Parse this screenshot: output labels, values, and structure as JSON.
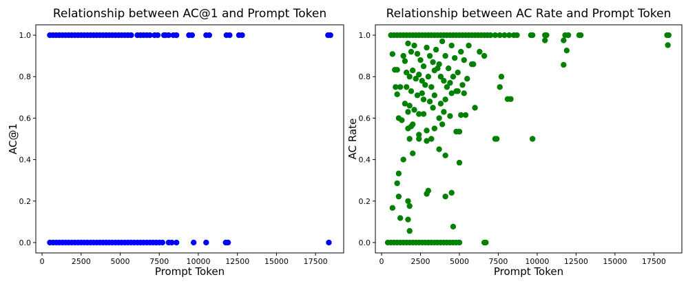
{
  "chart_data": [
    {
      "type": "scatter",
      "title": "Relationship between AC@1 and Prompt Token",
      "xlabel": "Prompt Token",
      "ylabel": "AC@1",
      "xlim": [
        -400,
        19300
      ],
      "ylim": [
        -0.05,
        1.05
      ],
      "xticks": [
        0,
        2500,
        5000,
        7500,
        10000,
        12500,
        15000,
        17500
      ],
      "yticks": [
        0.0,
        0.2,
        0.4,
        0.6,
        0.8,
        1.0
      ],
      "grid": false,
      "color": "#0000ff",
      "points": [
        [
          500,
          1
        ],
        [
          700,
          1
        ],
        [
          900,
          1
        ],
        [
          1100,
          1
        ],
        [
          1300,
          1
        ],
        [
          1500,
          1
        ],
        [
          1700,
          1
        ],
        [
          1900,
          1
        ],
        [
          2100,
          1
        ],
        [
          2300,
          1
        ],
        [
          2500,
          1
        ],
        [
          2700,
          1
        ],
        [
          2900,
          1
        ],
        [
          3100,
          1
        ],
        [
          3300,
          1
        ],
        [
          3500,
          1
        ],
        [
          3700,
          1
        ],
        [
          3900,
          1
        ],
        [
          4100,
          1
        ],
        [
          4300,
          1
        ],
        [
          4500,
          1
        ],
        [
          4700,
          1
        ],
        [
          4900,
          1
        ],
        [
          5100,
          1
        ],
        [
          5300,
          1
        ],
        [
          5500,
          1
        ],
        [
          5700,
          1
        ],
        [
          6100,
          1
        ],
        [
          6300,
          1
        ],
        [
          6500,
          1
        ],
        [
          6700,
          1
        ],
        [
          6900,
          1
        ],
        [
          7200,
          1
        ],
        [
          7400,
          1
        ],
        [
          7800,
          1
        ],
        [
          7900,
          1
        ],
        [
          8100,
          1
        ],
        [
          8400,
          1
        ],
        [
          8600,
          1
        ],
        [
          9400,
          1
        ],
        [
          9600,
          1
        ],
        [
          10500,
          1
        ],
        [
          10700,
          1
        ],
        [
          11800,
          1
        ],
        [
          12000,
          1
        ],
        [
          12600,
          1
        ],
        [
          12800,
          1
        ],
        [
          18300,
          1
        ],
        [
          18450,
          1
        ],
        [
          500,
          0
        ],
        [
          700,
          0
        ],
        [
          900,
          0
        ],
        [
          1100,
          0
        ],
        [
          1300,
          0
        ],
        [
          1500,
          0
        ],
        [
          1700,
          0
        ],
        [
          1900,
          0
        ],
        [
          2100,
          0
        ],
        [
          2300,
          0
        ],
        [
          2500,
          0
        ],
        [
          2700,
          0
        ],
        [
          2900,
          0
        ],
        [
          3100,
          0
        ],
        [
          3300,
          0
        ],
        [
          3500,
          0
        ],
        [
          3700,
          0
        ],
        [
          3900,
          0
        ],
        [
          4100,
          0
        ],
        [
          4300,
          0
        ],
        [
          4500,
          0
        ],
        [
          4700,
          0
        ],
        [
          4900,
          0
        ],
        [
          5100,
          0
        ],
        [
          5300,
          0
        ],
        [
          5500,
          0
        ],
        [
          5700,
          0
        ],
        [
          5900,
          0
        ],
        [
          6100,
          0
        ],
        [
          6300,
          0
        ],
        [
          6500,
          0
        ],
        [
          6700,
          0
        ],
        [
          6900,
          0
        ],
        [
          7100,
          0
        ],
        [
          7300,
          0
        ],
        [
          7500,
          0
        ],
        [
          7700,
          0
        ],
        [
          8100,
          0
        ],
        [
          8300,
          0
        ],
        [
          8600,
          0
        ],
        [
          9700,
          0
        ],
        [
          10500,
          0
        ],
        [
          11750,
          0
        ],
        [
          11900,
          0
        ],
        [
          18350,
          0
        ]
      ]
    },
    {
      "type": "scatter",
      "title": "Relationship between AC Rate and Prompt Token",
      "xlabel": "Prompt Token",
      "ylabel": "AC Rate",
      "xlim": [
        -400,
        19300
      ],
      "ylim": [
        -0.05,
        1.05
      ],
      "xticks": [
        0,
        2500,
        5000,
        7500,
        10000,
        12500,
        15000,
        17500
      ],
      "yticks": [
        0.0,
        0.2,
        0.4,
        0.6,
        0.8,
        1.0
      ],
      "grid": false,
      "color": "#008000",
      "points": [
        [
          600,
          1
        ],
        [
          800,
          1
        ],
        [
          1000,
          1
        ],
        [
          1200,
          1
        ],
        [
          1400,
          1
        ],
        [
          1600,
          1
        ],
        [
          1800,
          1
        ],
        [
          2000,
          1
        ],
        [
          2200,
          1
        ],
        [
          2400,
          1
        ],
        [
          2600,
          1
        ],
        [
          2800,
          1
        ],
        [
          3000,
          1
        ],
        [
          3200,
          1
        ],
        [
          3400,
          1
        ],
        [
          3600,
          1
        ],
        [
          3800,
          1
        ],
        [
          4000,
          1
        ],
        [
          4200,
          1
        ],
        [
          4400,
          1
        ],
        [
          4600,
          1
        ],
        [
          4800,
          1
        ],
        [
          5000,
          1
        ],
        [
          5200,
          1
        ],
        [
          5400,
          1
        ],
        [
          5600,
          1
        ],
        [
          5800,
          1
        ],
        [
          6000,
          1
        ],
        [
          6200,
          1
        ],
        [
          6400,
          1
        ],
        [
          6600,
          1
        ],
        [
          6800,
          1
        ],
        [
          7000,
          1
        ],
        [
          7300,
          1
        ],
        [
          7600,
          1
        ],
        [
          7900,
          1
        ],
        [
          8200,
          1
        ],
        [
          8500,
          1
        ],
        [
          8700,
          1
        ],
        [
          9600,
          1
        ],
        [
          9700,
          1
        ],
        [
          10500,
          1
        ],
        [
          10600,
          1
        ],
        [
          11800,
          1
        ],
        [
          12000,
          1
        ],
        [
          12700,
          1
        ],
        [
          12800,
          1
        ],
        [
          18350,
          1
        ],
        [
          18450,
          1
        ],
        [
          10500,
          0.975
        ],
        [
          11700,
          0.975
        ],
        [
          18400,
          0.952
        ],
        [
          11900,
          0.926
        ],
        [
          11700,
          0.857
        ],
        [
          700,
          0.909
        ],
        [
          1000,
          0.833
        ],
        [
          850,
          0.833
        ],
        [
          7700,
          0.8
        ],
        [
          7600,
          0.75
        ],
        [
          8100,
          0.692
        ],
        [
          8300,
          0.692
        ],
        [
          9700,
          0.5
        ],
        [
          7300,
          0.5
        ],
        [
          7400,
          0.5
        ],
        [
          1400,
          0.9
        ],
        [
          1500,
          0.875
        ],
        [
          1700,
          0.96
        ],
        [
          1900,
          0.92
        ],
        [
          2100,
          0.95
        ],
        [
          2300,
          0.91
        ],
        [
          2500,
          0.88
        ],
        [
          2700,
          0.85
        ],
        [
          2900,
          0.94
        ],
        [
          3100,
          0.9
        ],
        [
          3300,
          0.87
        ],
        [
          3500,
          0.93
        ],
        [
          3700,
          0.86
        ],
        [
          3900,
          0.97
        ],
        [
          4100,
          0.9
        ],
        [
          4300,
          0.84
        ],
        [
          4500,
          0.95
        ],
        [
          4700,
          0.89
        ],
        [
          4900,
          0.82
        ],
        [
          5100,
          0.92
        ],
        [
          5300,
          0.88
        ],
        [
          5600,
          0.95
        ],
        [
          5900,
          0.86
        ],
        [
          6300,
          0.92
        ],
        [
          6600,
          0.9
        ],
        [
          1600,
          0.82
        ],
        [
          1800,
          0.8
        ],
        [
          2000,
          0.83
        ],
        [
          2200,
          0.79
        ],
        [
          2400,
          0.81
        ],
        [
          2600,
          0.78
        ],
        [
          2800,
          0.76
        ],
        [
          3000,
          0.8
        ],
        [
          3200,
          0.75
        ],
        [
          3400,
          0.83
        ],
        [
          3600,
          0.84
        ],
        [
          3800,
          0.8
        ],
        [
          4000,
          0.78
        ],
        [
          4200,
          0.75
        ],
        [
          4400,
          0.77
        ],
        [
          4600,
          0.8
        ],
        [
          4800,
          0.73
        ],
        [
          5200,
          0.76
        ],
        [
          5500,
          0.79
        ],
        [
          5800,
          0.86
        ],
        [
          900,
          0.75
        ],
        [
          1200,
          0.75
        ],
        [
          1600,
          0.75
        ],
        [
          1900,
          0.73
        ],
        [
          2300,
          0.71
        ],
        [
          2600,
          0.72
        ],
        [
          3100,
          0.68
        ],
        [
          3400,
          0.71
        ],
        [
          3800,
          0.67
        ],
        [
          4100,
          0.69
        ],
        [
          4500,
          0.72
        ],
        [
          4900,
          0.73
        ],
        [
          5300,
          0.72
        ],
        [
          1000,
          0.715
        ],
        [
          2700,
          0.69
        ],
        [
          1500,
          0.67
        ],
        [
          1800,
          0.66
        ],
        [
          2100,
          0.64
        ],
        [
          2400,
          0.62
        ],
        [
          2700,
          0.62
        ],
        [
          3300,
          0.65
        ],
        [
          3700,
          0.6
        ],
        [
          4000,
          0.63
        ],
        [
          4400,
          0.61
        ],
        [
          5100,
          0.615
        ],
        [
          5400,
          0.615
        ],
        [
          6000,
          0.65
        ],
        [
          1700,
          0.63
        ],
        [
          1100,
          0.6
        ],
        [
          1300,
          0.59
        ],
        [
          1700,
          0.55
        ],
        [
          2000,
          0.57
        ],
        [
          2400,
          0.52
        ],
        [
          2900,
          0.54
        ],
        [
          3400,
          0.55
        ],
        [
          3900,
          0.57
        ],
        [
          4800,
          0.535
        ],
        [
          5000,
          0.535
        ],
        [
          1900,
          0.56
        ],
        [
          1800,
          0.5
        ],
        [
          2400,
          0.5
        ],
        [
          2900,
          0.49
        ],
        [
          3200,
          0.5
        ],
        [
          3700,
          0.45
        ],
        [
          4100,
          0.42
        ],
        [
          5000,
          0.385
        ],
        [
          2000,
          0.43
        ],
        [
          1400,
          0.4
        ],
        [
          1100,
          0.333
        ],
        [
          1000,
          0.286
        ],
        [
          1100,
          0.222
        ],
        [
          700,
          0.167
        ],
        [
          1200,
          0.118
        ],
        [
          1700,
          0.2
        ],
        [
          1800,
          0.176
        ],
        [
          1700,
          0.111
        ],
        [
          1800,
          0.056
        ],
        [
          2900,
          0.235
        ],
        [
          3000,
          0.25
        ],
        [
          4100,
          0.222
        ],
        [
          4500,
          0.24
        ],
        [
          4600,
          0.077
        ],
        [
          400,
          0
        ],
        [
          600,
          0
        ],
        [
          800,
          0
        ],
        [
          1000,
          0
        ],
        [
          1200,
          0
        ],
        [
          1400,
          0
        ],
        [
          1600,
          0
        ],
        [
          1800,
          0
        ],
        [
          2000,
          0
        ],
        [
          2200,
          0
        ],
        [
          2400,
          0
        ],
        [
          2600,
          0
        ],
        [
          2800,
          0
        ],
        [
          3000,
          0
        ],
        [
          3200,
          0
        ],
        [
          3400,
          0
        ],
        [
          3600,
          0
        ],
        [
          3800,
          0
        ],
        [
          4000,
          0
        ],
        [
          4200,
          0
        ],
        [
          4400,
          0
        ],
        [
          4600,
          0
        ],
        [
          4800,
          0
        ],
        [
          5000,
          0
        ],
        [
          6600,
          0
        ],
        [
          6700,
          0
        ]
      ]
    }
  ]
}
